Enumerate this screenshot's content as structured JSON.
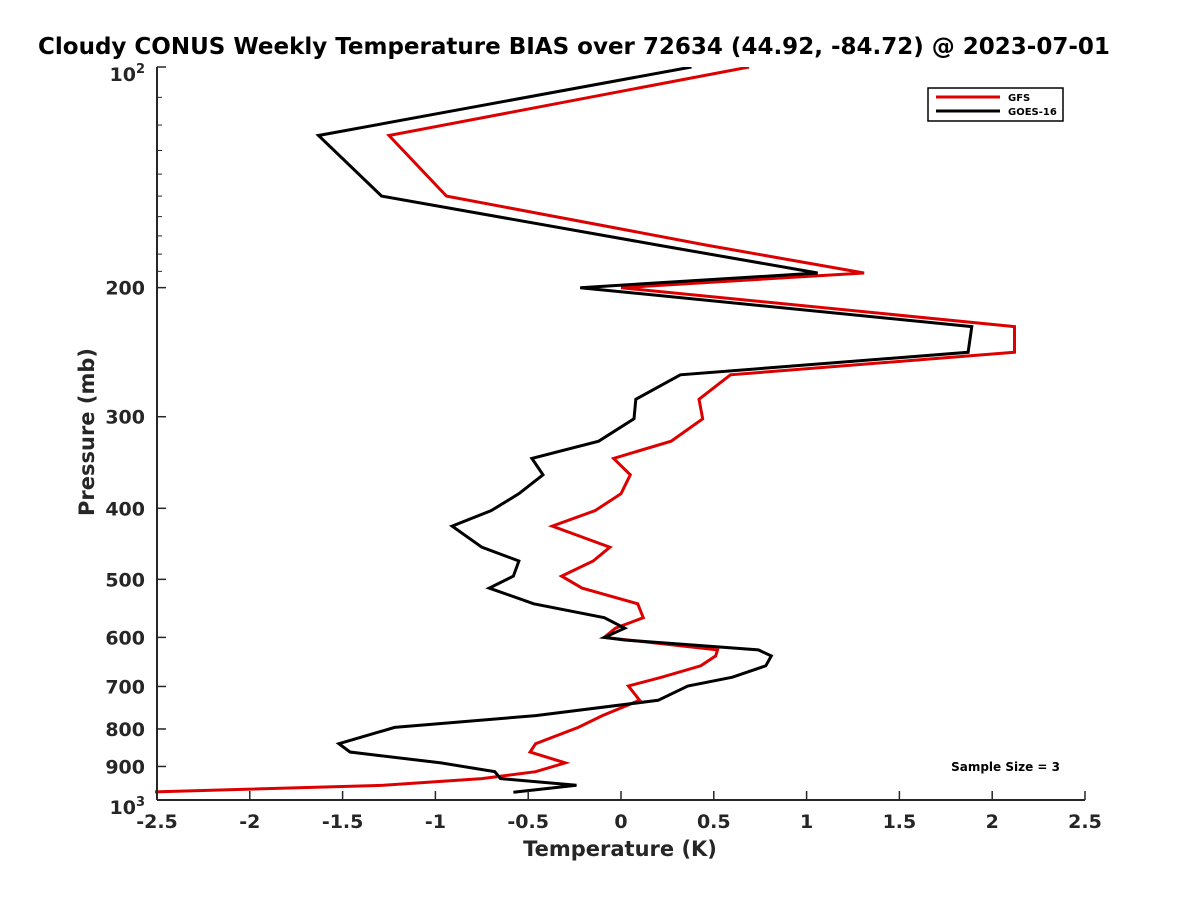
{
  "chart_data": {
    "type": "line",
    "title": "Cloudy CONUS Weekly Temperature BIAS over 72634 (44.92, -84.72) @ 2023-07-01",
    "xlabel": "Temperature (K)",
    "ylabel": "Pressure (mb)",
    "xlim": [
      -2.5,
      2.5
    ],
    "ylim": [
      100,
      1000
    ],
    "yscale": "log",
    "y_reversed": true,
    "x_ticks": [
      -2.5,
      -2,
      -1.5,
      -1,
      -0.5,
      0,
      0.5,
      1,
      1.5,
      2,
      2.5
    ],
    "x_tick_labels": [
      "-2.5",
      "-2",
      "-1.5",
      "-1",
      "-0.5",
      "0",
      "0.5",
      "1",
      "1.5",
      "2",
      "2.5"
    ],
    "y_ticks": [
      200,
      300,
      400,
      500,
      600,
      700,
      800,
      900
    ],
    "y_tick_labels": [
      "200",
      "300",
      "400",
      "500",
      "600",
      "700",
      "800",
      "900"
    ],
    "y_top_label": {
      "base": "10",
      "exp": "2"
    },
    "y_bottom_label": {
      "base": "10",
      "exp": "3"
    },
    "grid": false,
    "legend": "top-right",
    "annotation": "Sample Size = 3",
    "series": [
      {
        "name": "GFS",
        "color": "#dd0000",
        "points": [
          [
            0.69,
            100
          ],
          [
            -1.25,
            124
          ],
          [
            -0.94,
            150
          ],
          [
            0.46,
            175
          ],
          [
            1.31,
            191
          ],
          [
            0.0,
            200
          ],
          [
            2.12,
            226
          ],
          [
            2.12,
            245
          ],
          [
            0.59,
            263
          ],
          [
            0.42,
            284
          ],
          [
            0.44,
            302
          ],
          [
            0.27,
            324
          ],
          [
            -0.04,
            342
          ],
          [
            0.05,
            360
          ],
          [
            0.0,
            382
          ],
          [
            -0.14,
            403
          ],
          [
            -0.37,
            423
          ],
          [
            -0.06,
            452
          ],
          [
            -0.15,
            472
          ],
          [
            -0.32,
            495
          ],
          [
            -0.21,
            514
          ],
          [
            0.09,
            540
          ],
          [
            0.12,
            564
          ],
          [
            -0.03,
            583
          ],
          [
            -0.09,
            600
          ],
          [
            0.52,
            624
          ],
          [
            0.51,
            636
          ],
          [
            0.43,
            656
          ],
          [
            0.22,
            680
          ],
          [
            0.04,
            699
          ],
          [
            0.1,
            731
          ],
          [
            -0.1,
            767
          ],
          [
            -0.23,
            796
          ],
          [
            -0.46,
            838
          ],
          [
            -0.49,
            860
          ],
          [
            -0.3,
            890
          ],
          [
            -0.46,
            915
          ],
          [
            -0.75,
            935
          ],
          [
            -1.28,
            955
          ],
          [
            -2.6,
            976
          ]
        ]
      },
      {
        "name": "GOES-16",
        "color": "#000000",
        "points": [
          [
            0.38,
            100
          ],
          [
            -1.63,
            124
          ],
          [
            -1.29,
            150
          ],
          [
            0.2,
            175
          ],
          [
            1.06,
            191
          ],
          [
            -0.22,
            200
          ],
          [
            1.89,
            226
          ],
          [
            1.87,
            245
          ],
          [
            0.32,
            263
          ],
          [
            0.08,
            284
          ],
          [
            0.07,
            302
          ],
          [
            -0.12,
            324
          ],
          [
            -0.48,
            342
          ],
          [
            -0.42,
            360
          ],
          [
            -0.55,
            382
          ],
          [
            -0.7,
            403
          ],
          [
            -0.91,
            423
          ],
          [
            -0.75,
            452
          ],
          [
            -0.55,
            472
          ],
          [
            -0.58,
            495
          ],
          [
            -0.71,
            514
          ],
          [
            -0.47,
            540
          ],
          [
            -0.09,
            564
          ],
          [
            0.02,
            583
          ],
          [
            -0.09,
            600
          ],
          [
            0.02,
            605
          ],
          [
            0.74,
            624
          ],
          [
            0.81,
            636
          ],
          [
            0.78,
            656
          ],
          [
            0.6,
            680
          ],
          [
            0.36,
            699
          ],
          [
            0.2,
            731
          ],
          [
            -0.46,
            767
          ],
          [
            -1.22,
            796
          ],
          [
            -1.52,
            838
          ],
          [
            -1.46,
            860
          ],
          [
            -0.97,
            890
          ],
          [
            -0.68,
            915
          ],
          [
            -0.65,
            935
          ],
          [
            -0.24,
            955
          ],
          [
            -0.58,
            976
          ]
        ]
      }
    ]
  }
}
